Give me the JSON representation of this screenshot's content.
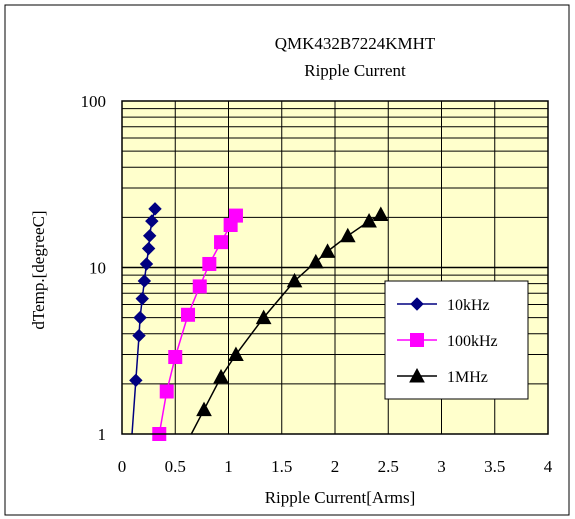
{
  "chart_data": {
    "type": "line",
    "title": "QMK432B7224KMHT",
    "subtitle": "Ripple Current",
    "xlabel": "Ripple Current[Arms]",
    "ylabel": "dTemp.[degreeC]",
    "xlim": [
      0,
      4
    ],
    "ylim": [
      1,
      100
    ],
    "yscale": "log",
    "x_ticks": [
      "0",
      "0.5",
      "1",
      "1.5",
      "2",
      "2.5",
      "3",
      "3.5",
      "4"
    ],
    "y_ticks": [
      "1",
      "10",
      "100"
    ],
    "grid": true,
    "legend_position": "right",
    "plot_background": "#ffffcc",
    "series": [
      {
        "name": "10kHz",
        "color": "#000080",
        "marker": "diamond",
        "points": [
          [
            0.13,
            2.1
          ],
          [
            0.16,
            3.9
          ],
          [
            0.17,
            5.0
          ],
          [
            0.19,
            6.5
          ],
          [
            0.21,
            8.3
          ],
          [
            0.23,
            10.5
          ],
          [
            0.25,
            13.0
          ],
          [
            0.26,
            15.5
          ],
          [
            0.28,
            19.0
          ],
          [
            0.31,
            22.5
          ]
        ]
      },
      {
        "name": "100kHz",
        "color": "#ff00ff",
        "marker": "square",
        "points": [
          [
            0.35,
            1.0
          ],
          [
            0.42,
            1.8
          ],
          [
            0.5,
            2.9
          ],
          [
            0.62,
            5.2
          ],
          [
            0.73,
            7.7
          ],
          [
            0.82,
            10.5
          ],
          [
            0.93,
            14.2
          ],
          [
            1.02,
            18.0
          ],
          [
            1.07,
            20.5
          ]
        ]
      },
      {
        "name": "1MHz",
        "color": "#000000",
        "marker": "triangle",
        "points": [
          [
            0.77,
            1.4
          ],
          [
            0.93,
            2.2
          ],
          [
            1.07,
            3.0
          ],
          [
            1.33,
            5.0
          ],
          [
            1.62,
            8.3
          ],
          [
            1.82,
            10.8
          ],
          [
            1.93,
            12.5
          ],
          [
            2.12,
            15.5
          ],
          [
            2.32,
            19.0
          ],
          [
            2.43,
            20.8
          ]
        ]
      }
    ]
  }
}
